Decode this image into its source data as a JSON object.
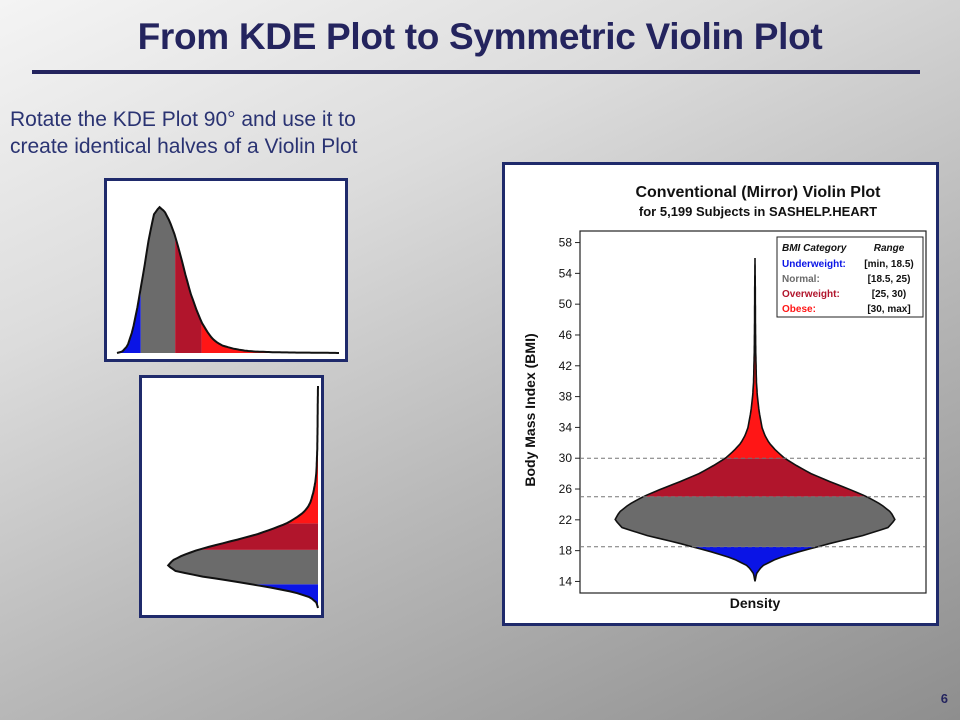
{
  "slide": {
    "title": "From KDE Plot to Symmetric Violin Plot",
    "caption_lines": [
      "Rotate the KDE Plot 90° and use it to",
      "create identical halves of a Violin Plot"
    ],
    "page_number": "6"
  },
  "colors": {
    "underweight": "#0a14e6",
    "normal": "#6b6b6b",
    "overweight": "#b1152c",
    "obese": "#ff1616",
    "title_navy": "#24245e",
    "panel_border": "#1f2a6b"
  },
  "chart_data": [
    {
      "type": "area",
      "orientation": "horizontal-kde",
      "x": [
        14,
        15,
        16,
        17,
        18,
        18.5,
        19,
        20,
        21,
        22,
        23,
        24,
        25,
        26,
        27,
        28,
        29,
        30,
        31,
        32,
        33,
        34,
        36,
        38,
        40,
        44,
        48,
        52,
        56
      ],
      "density": [
        0,
        0.01,
        0.05,
        0.16,
        0.34,
        0.45,
        0.55,
        0.78,
        0.95,
        1.0,
        0.97,
        0.9,
        0.8,
        0.67,
        0.53,
        0.4,
        0.3,
        0.21,
        0.15,
        0.1,
        0.07,
        0.05,
        0.03,
        0.017,
        0.01,
        0.005,
        0.003,
        0.002,
        0
      ],
      "bands": [
        {
          "name": "Underweight",
          "from": 14,
          "to": 18.5,
          "color_key": "underweight"
        },
        {
          "name": "Normal",
          "from": 18.5,
          "to": 25,
          "color_key": "normal"
        },
        {
          "name": "Overweight",
          "from": 25,
          "to": 30,
          "color_key": "overweight"
        },
        {
          "name": "Obese",
          "from": 30,
          "to": 56,
          "color_key": "obese"
        }
      ]
    },
    {
      "type": "area",
      "orientation": "rotated-half-violin"
    },
    {
      "type": "violin",
      "title": "Conventional (Mirror) Violin Plot",
      "subtitle": "for 5,199 Subjects in SASHELP.HEART",
      "xlabel": "Density",
      "ylabel": "Body Mass Index (BMI)",
      "ylim": [
        12.5,
        59.5
      ],
      "yticks": [
        14,
        18,
        22,
        26,
        30,
        34,
        38,
        42,
        46,
        50,
        54,
        58
      ],
      "cutoffs": [
        18.5,
        25,
        30
      ],
      "legend": {
        "position": "top-right",
        "header": [
          "BMI Category",
          "Range"
        ],
        "entries": [
          {
            "label": "Underweight:",
            "range": "[min, 18.5)",
            "color_key": "underweight"
          },
          {
            "label": "Normal:",
            "range": "[18.5, 25)",
            "color_key": "normal"
          },
          {
            "label": "Overweight:",
            "range": "[25, 30)",
            "color_key": "overweight"
          },
          {
            "label": "Obese:",
            "range": "[30, max]",
            "color_key": "obese"
          }
        ]
      }
    }
  ]
}
